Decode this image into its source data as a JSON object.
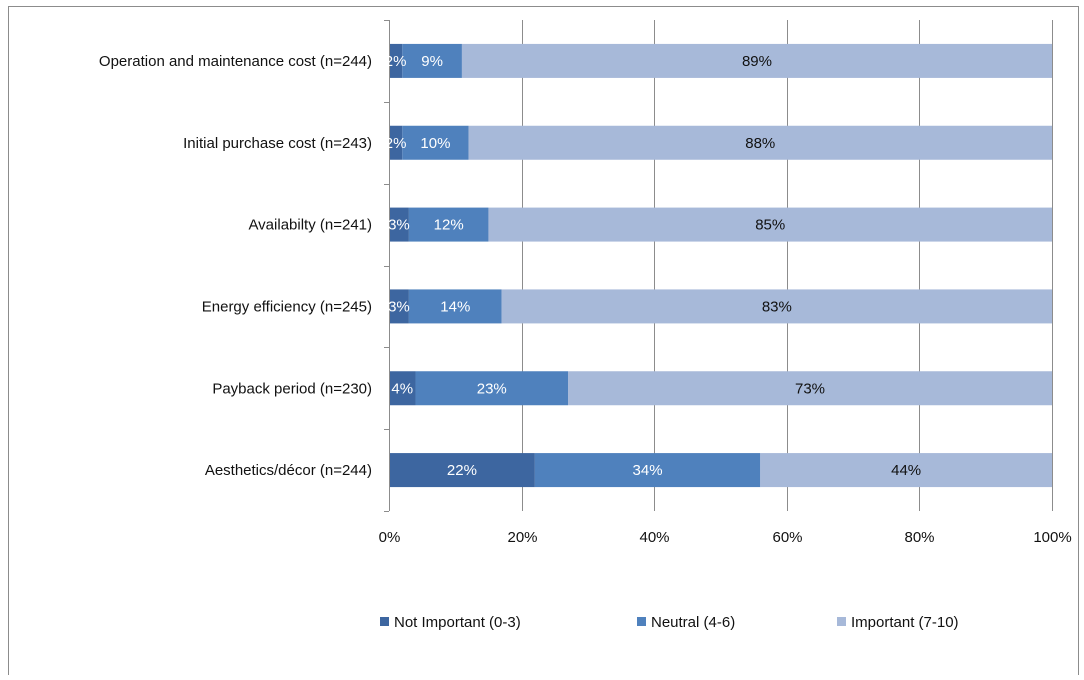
{
  "chart_data": {
    "type": "bar",
    "orientation": "horizontal",
    "stacked": true,
    "percent_stacked": true,
    "categories": [
      "Operation and maintenance cost (n=244)",
      "Initial purchase cost (n=243)",
      "Availabilty (n=241)",
      "Energy efficiency (n=245)",
      "Payback period (n=230)",
      "Aesthetics/décor (n=244)"
    ],
    "series": [
      {
        "name": "Not Important (0-3)",
        "color": "#3d66a0",
        "label_color": "#ffffff",
        "values": [
          2,
          2,
          3,
          3,
          4,
          22
        ],
        "labels": [
          "2%",
          "2%",
          "3%",
          "3%",
          "4%",
          "22%"
        ]
      },
      {
        "name": "Neutral (4-6)",
        "color": "#4f81bd",
        "label_color": "#ffffff",
        "values": [
          9,
          10,
          12,
          14,
          23,
          34
        ],
        "labels": [
          "9%",
          "10%",
          "12%",
          "14%",
          "23%",
          "34%"
        ]
      },
      {
        "name": "Important (7-10)",
        "color": "#a7b9d9",
        "label_color": "#111111",
        "values": [
          89,
          88,
          85,
          83,
          73,
          44
        ],
        "labels": [
          "89%",
          "88%",
          "85%",
          "83%",
          "73%",
          "44%"
        ]
      }
    ],
    "xlim": [
      0,
      100
    ],
    "x_ticks": [
      "0%",
      "20%",
      "40%",
      "60%",
      "80%",
      "100%"
    ],
    "grid": true,
    "legend_position": "bottom",
    "title": "",
    "xlabel": "",
    "ylabel": ""
  }
}
